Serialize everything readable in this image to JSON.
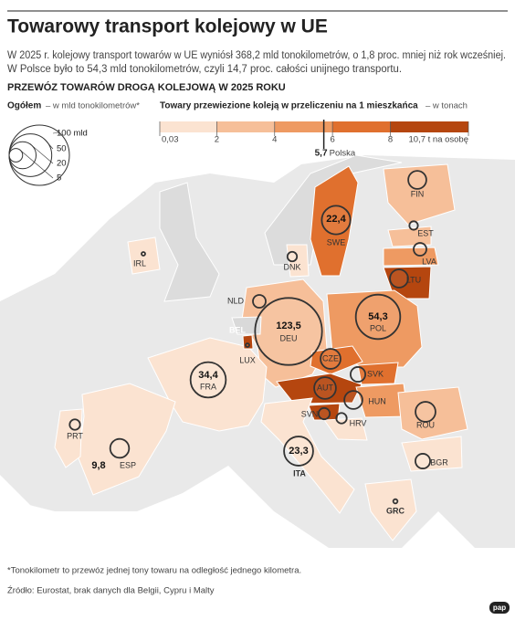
{
  "chart_data": {
    "type": "map",
    "title": "Towarowy transport kolejowy w UE",
    "subtitle": [
      "W 2025 r. kolejowy transport towarów w UE wyniósł 368,2 mld tonokilometrów, o 1,8 proc. mniej niż rok wcześniej.",
      "W Polsce było to 54,3 mld tonokilometrów, czyli 14,7 proc. całości unijnego transportu."
    ],
    "heading": "PRZEWÓZ TOWARÓW DROGĄ KOLEJOWĄ W 2025 ROKU",
    "size_legend": {
      "title": "Ogółem",
      "unit": "– w mld tonokilometrów*",
      "sizes": [
        {
          "value": 100,
          "label": "100 mld"
        },
        50,
        20,
        5
      ]
    },
    "color_legend": {
      "title": "Towary przewiezione koleją w przeliczeniu na 1 mieszkańca",
      "unit": "– w tonach",
      "ticks": [
        {
          "value": 0.03,
          "label": "0,03"
        },
        2,
        4,
        6,
        8,
        {
          "value": 10.7,
          "label": "10,7 t na osobę"
        }
      ],
      "colors": [
        "#fbe3d1",
        "#f6bf99",
        "#ee9a62",
        "#e0702e",
        "#b5460f"
      ],
      "marker": {
        "value": 5.7,
        "label": "5,7",
        "name": "Polska"
      }
    },
    "countries": [
      {
        "code": "FIN",
        "value": 9,
        "color": "#f6bf99"
      },
      {
        "code": "SWE",
        "value": 22.4,
        "value_label": "22,4",
        "color": "#e0702e"
      },
      {
        "code": "EST",
        "value": 2,
        "color": "#f6bf99"
      },
      {
        "code": "LVA",
        "value": 4.5,
        "color": "#ee9a62"
      },
      {
        "code": "LTU",
        "value": 9,
        "color": "#b5460f"
      },
      {
        "code": "DNK",
        "value": 2.5,
        "color": "#fbe3d1"
      },
      {
        "code": "IRL",
        "value": 0.1,
        "color": "#fbe3d1"
      },
      {
        "code": "NLD",
        "value": 4.5,
        "color": "#fbe3d1"
      },
      {
        "code": "DEU",
        "value": 123.5,
        "value_label": "123,5",
        "color": "#f6bf99"
      },
      {
        "code": "POL",
        "value": 54.3,
        "value_label": "54,3",
        "color": "#ee9a62"
      },
      {
        "code": "CZE",
        "value": 11,
        "color": "#e0702e"
      },
      {
        "code": "SVK",
        "value": 6,
        "color": "#e0702e"
      },
      {
        "code": "AUT",
        "value": 13,
        "color": "#b5460f"
      },
      {
        "code": "HUN",
        "value": 9,
        "color": "#ee9a62"
      },
      {
        "code": "SVN",
        "value": 3.5,
        "color": "#b5460f"
      },
      {
        "code": "HRV",
        "value": 3,
        "color": "#fbe3d1"
      },
      {
        "code": "ROU",
        "value": 11,
        "color": "#f6bf99"
      },
      {
        "code": "BGR",
        "value": 6,
        "color": "#fbe3d1"
      },
      {
        "code": "GRC",
        "value": 0.5,
        "color": "#fbe3d1"
      },
      {
        "code": "FRA",
        "value": 34.4,
        "value_label": "34,4",
        "color": "#fbe3d1"
      },
      {
        "code": "ESP",
        "value": 9.8,
        "value_label": "9,8",
        "color": "#fbe3d1"
      },
      {
        "code": "PRT",
        "value": 3,
        "color": "#fbe3d1"
      },
      {
        "code": "ITA",
        "value": 23.3,
        "value_label": "23,3",
        "color": "#fbe3d1"
      },
      {
        "code": "LUX",
        "value": 0.2,
        "color": "#b5460f"
      },
      {
        "code": "BEL",
        "color": "#d9d9d9"
      }
    ],
    "footnote": "*Tonokilometr to przewóz jednej tony towaru na odległość jednego kilometra.",
    "source": "Źródło: Eurostat, brak danych dla Belgii, Cypru i Malty",
    "logo": "pap"
  }
}
